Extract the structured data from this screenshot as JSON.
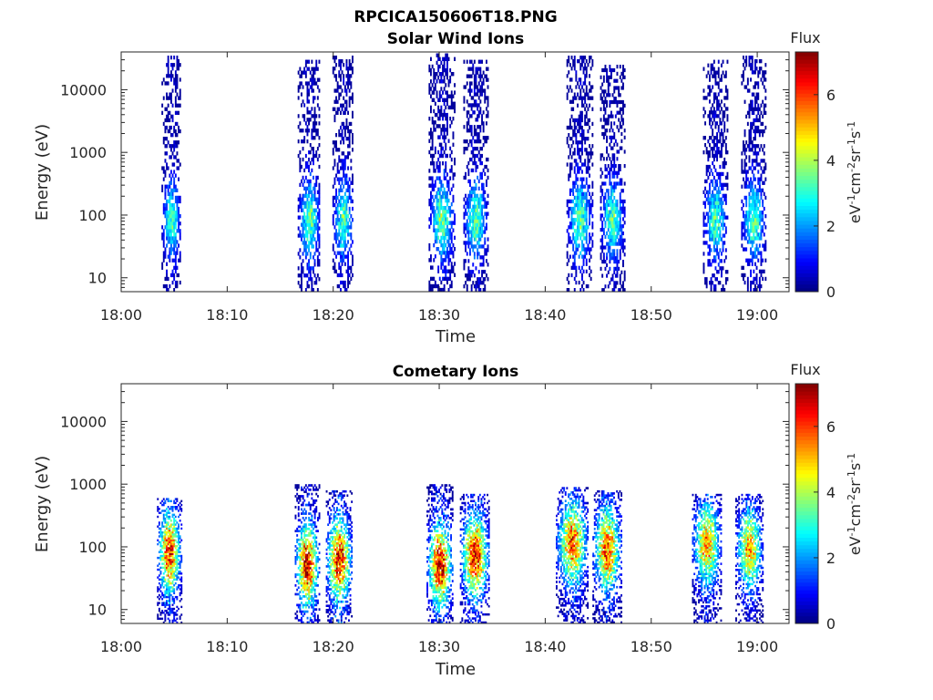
{
  "figure_title": "RPCICA150606T18.PNG",
  "chart_data": [
    {
      "type": "heatmap",
      "title": "Solar Wind Ions",
      "xlabel": "Time",
      "ylabel": "Energy (eV)",
      "x_ticks": [
        "18:00",
        "18:10",
        "18:20",
        "18:30",
        "18:40",
        "18:50",
        "19:00"
      ],
      "x_range_minutes": [
        0,
        63
      ],
      "y_scale": "log",
      "y_ticks": [
        "10",
        "100",
        "1000",
        "10000"
      ],
      "y_range": [
        6,
        40000
      ],
      "colorbar": {
        "title": "Flux",
        "label": "eV-1cm-2sr-1s-1",
        "ticks": [
          "0",
          "2",
          "4",
          "6"
        ],
        "range": [
          0,
          7.3
        ],
        "colormap": "jet"
      },
      "bursts": [
        {
          "time_minute": 4.7,
          "width_minutes": 1.2,
          "energy_low_eV": 6,
          "energy_high_eV": 35000,
          "peak_flux": 3.0,
          "peak_energy_eV": 80
        },
        {
          "time_minute": 17.7,
          "width_minutes": 1.4,
          "energy_low_eV": 6,
          "energy_high_eV": 30000,
          "peak_flux": 3.2,
          "peak_energy_eV": 80
        },
        {
          "time_minute": 20.9,
          "width_minutes": 1.3,
          "energy_low_eV": 6,
          "energy_high_eV": 35000,
          "peak_flux": 3.0,
          "peak_energy_eV": 80
        },
        {
          "time_minute": 30.2,
          "width_minutes": 1.6,
          "energy_low_eV": 6,
          "energy_high_eV": 38000,
          "peak_flux": 3.3,
          "peak_energy_eV": 80
        },
        {
          "time_minute": 33.4,
          "width_minutes": 1.5,
          "energy_low_eV": 6,
          "energy_high_eV": 30000,
          "peak_flux": 3.2,
          "peak_energy_eV": 80
        },
        {
          "time_minute": 43.2,
          "width_minutes": 1.6,
          "energy_low_eV": 6,
          "energy_high_eV": 35000,
          "peak_flux": 3.1,
          "peak_energy_eV": 80
        },
        {
          "time_minute": 46.3,
          "width_minutes": 1.5,
          "energy_low_eV": 6,
          "energy_high_eV": 25000,
          "peak_flux": 3.1,
          "peak_energy_eV": 80
        },
        {
          "time_minute": 56.0,
          "width_minutes": 1.5,
          "energy_low_eV": 6,
          "energy_high_eV": 30000,
          "peak_flux": 3.0,
          "peak_energy_eV": 80
        },
        {
          "time_minute": 59.6,
          "width_minutes": 1.5,
          "energy_low_eV": 6,
          "energy_high_eV": 35000,
          "peak_flux": 3.1,
          "peak_energy_eV": 80
        }
      ]
    },
    {
      "type": "heatmap",
      "title": "Cometary Ions",
      "xlabel": "Time",
      "ylabel": "Energy (eV)",
      "x_ticks": [
        "18:00",
        "18:10",
        "18:20",
        "18:30",
        "18:40",
        "18:50",
        "19:00"
      ],
      "x_range_minutes": [
        0,
        63
      ],
      "y_scale": "log",
      "y_ticks": [
        "10",
        "100",
        "1000",
        "10000"
      ],
      "y_range": [
        6,
        40000
      ],
      "colorbar": {
        "title": "Flux",
        "label": "eV-1cm-2sr-1s-1",
        "ticks": [
          "0",
          "2",
          "4",
          "6"
        ],
        "range": [
          0,
          7.3
        ],
        "colormap": "jet"
      },
      "bursts": [
        {
          "time_minute": 4.5,
          "width_minutes": 1.5,
          "energy_low_eV": 6,
          "energy_high_eV": 600,
          "peak_flux": 5.8,
          "peak_energy_eV": 80
        },
        {
          "time_minute": 17.5,
          "width_minutes": 1.5,
          "energy_low_eV": 6,
          "energy_high_eV": 1000,
          "peak_flux": 6.3,
          "peak_energy_eV": 50
        },
        {
          "time_minute": 20.5,
          "width_minutes": 1.6,
          "energy_low_eV": 6,
          "energy_high_eV": 800,
          "peak_flux": 6.2,
          "peak_energy_eV": 60
        },
        {
          "time_minute": 30.0,
          "width_minutes": 1.6,
          "energy_low_eV": 6,
          "energy_high_eV": 1000,
          "peak_flux": 6.3,
          "peak_energy_eV": 50
        },
        {
          "time_minute": 33.3,
          "width_minutes": 1.8,
          "energy_low_eV": 6,
          "energy_high_eV": 700,
          "peak_flux": 6.0,
          "peak_energy_eV": 70
        },
        {
          "time_minute": 42.5,
          "width_minutes": 2.0,
          "energy_low_eV": 6,
          "energy_high_eV": 900,
          "peak_flux": 5.3,
          "peak_energy_eV": 110
        },
        {
          "time_minute": 45.8,
          "width_minutes": 1.8,
          "energy_low_eV": 6,
          "energy_high_eV": 800,
          "peak_flux": 5.5,
          "peak_energy_eV": 90
        },
        {
          "time_minute": 55.2,
          "width_minutes": 1.8,
          "energy_low_eV": 6,
          "energy_high_eV": 700,
          "peak_flux": 5.0,
          "peak_energy_eV": 110
        },
        {
          "time_minute": 59.2,
          "width_minutes": 1.7,
          "energy_low_eV": 6,
          "energy_high_eV": 700,
          "peak_flux": 4.8,
          "peak_energy_eV": 90
        }
      ]
    }
  ]
}
